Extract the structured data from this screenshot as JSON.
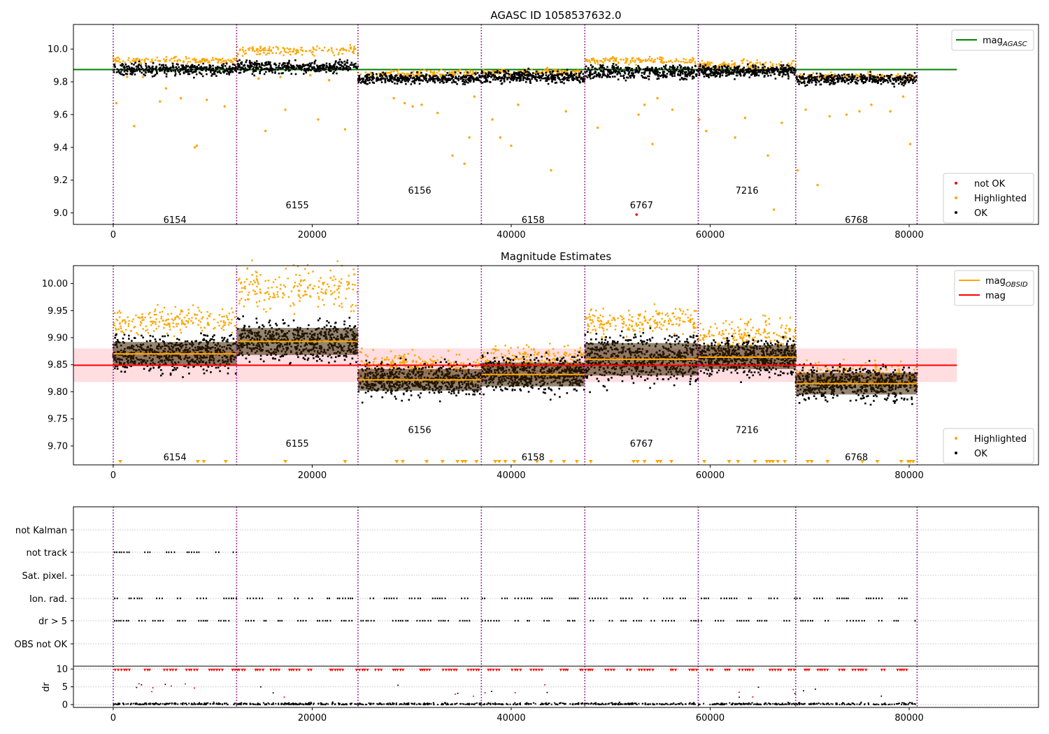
{
  "chart_data": [
    {
      "type": "scatter",
      "title": "AGASC ID 1058537632.0",
      "xlim": [
        -4000,
        93000
      ],
      "ylim": [
        8.93,
        10.15
      ],
      "xticks": [
        0,
        20000,
        40000,
        60000,
        80000
      ],
      "yticks": [
        9.0,
        9.2,
        9.4,
        9.6,
        9.8,
        10.0
      ],
      "obsid_boundaries": [
        0,
        12400,
        24600,
        37000,
        47400,
        58800,
        68600,
        80800
      ],
      "obsids": [
        {
          "label": "6154",
          "x": 6200,
          "y": 8.96,
          "ok_center": 9.875,
          "ok_halfwidth": 0.035,
          "hi_center": 9.93,
          "hi_halfwidth": 0.02
        },
        {
          "label": "6155",
          "x": 18500,
          "y": 9.05,
          "ok_center": 9.89,
          "ok_halfwidth": 0.035,
          "hi_center": 9.99,
          "hi_halfwidth": 0.03
        },
        {
          "label": "6156",
          "x": 30800,
          "y": 9.14,
          "ok_center": 9.82,
          "ok_halfwidth": 0.03,
          "hi_center": 9.85,
          "hi_halfwidth": 0.02
        },
        {
          "label": "6158",
          "x": 42200,
          "y": 8.96,
          "ok_center": 9.83,
          "ok_halfwidth": 0.035,
          "hi_center": 9.86,
          "hi_halfwidth": 0.02
        },
        {
          "label": "6767",
          "x": 53100,
          "y": 9.05,
          "ok_center": 9.86,
          "ok_halfwidth": 0.04,
          "hi_center": 9.93,
          "hi_halfwidth": 0.02
        },
        {
          "label": "7216",
          "x": 63700,
          "y": 9.14,
          "ok_center": 9.865,
          "ok_halfwidth": 0.035,
          "hi_center": 9.9,
          "hi_halfwidth": 0.03
        },
        {
          "label": "6768",
          "x": 74700,
          "y": 8.96,
          "ok_center": 9.815,
          "ok_halfwidth": 0.03,
          "hi_center": 9.83,
          "hi_halfwidth": 0.02
        }
      ],
      "series": [
        {
          "name": "mag$_{AGASC}$",
          "kind": "line",
          "color": "#008000",
          "y": 9.875,
          "x_range": [
            -4000,
            84800
          ]
        },
        {
          "name": "not OK",
          "kind": "scatter",
          "color": "#ff0000",
          "points": [
            [
              52600,
              8.99
            ]
          ]
        },
        {
          "name": "Highlighted",
          "kind": "scatter",
          "color": "#ffa500"
        },
        {
          "name": "OK",
          "kind": "scatter",
          "color": "#000000"
        }
      ],
      "outliers": [
        [
          300,
          9.67
        ],
        [
          1400,
          9.83
        ],
        [
          2100,
          9.53
        ],
        [
          3000,
          9.83
        ],
        [
          4700,
          9.68
        ],
        [
          5300,
          9.76
        ],
        [
          6800,
          9.7
        ],
        [
          8200,
          9.4
        ],
        [
          8400,
          9.41
        ],
        [
          9400,
          9.69
        ],
        [
          11200,
          9.65
        ],
        [
          14600,
          9.82
        ],
        [
          15300,
          9.5
        ],
        [
          16800,
          9.83
        ],
        [
          17300,
          9.63
        ],
        [
          19800,
          9.84
        ],
        [
          20600,
          9.57
        ],
        [
          21700,
          9.81
        ],
        [
          23300,
          9.51
        ],
        [
          28200,
          9.7
        ],
        [
          29300,
          9.67
        ],
        [
          30100,
          9.65
        ],
        [
          31000,
          9.66
        ],
        [
          32600,
          9.61
        ],
        [
          34100,
          9.35
        ],
        [
          35300,
          9.3
        ],
        [
          35800,
          9.46
        ],
        [
          36300,
          9.71
        ],
        [
          38100,
          9.57
        ],
        [
          38900,
          9.46
        ],
        [
          40000,
          9.41
        ],
        [
          40700,
          9.66
        ],
        [
          44000,
          9.26
        ],
        [
          45500,
          9.62
        ],
        [
          48700,
          9.52
        ],
        [
          52800,
          9.6
        ],
        [
          53400,
          9.66
        ],
        [
          54200,
          9.42
        ],
        [
          54700,
          9.7
        ],
        [
          56200,
          9.63
        ],
        [
          58900,
          9.57
        ],
        [
          59600,
          9.5
        ],
        [
          62500,
          9.46
        ],
        [
          63500,
          9.58
        ],
        [
          65800,
          9.35
        ],
        [
          66400,
          9.02
        ],
        [
          67200,
          9.55
        ],
        [
          68800,
          9.26
        ],
        [
          69600,
          9.63
        ],
        [
          70800,
          9.17
        ],
        [
          72000,
          9.59
        ],
        [
          73700,
          9.6
        ],
        [
          75000,
          9.62
        ],
        [
          76200,
          9.66
        ],
        [
          78100,
          9.62
        ],
        [
          79400,
          9.71
        ],
        [
          80100,
          9.42
        ]
      ],
      "legend_upper": "upper right",
      "legend_lower": "lower right"
    },
    {
      "type": "scatter",
      "title": "Magnitude Estimates",
      "xlim": [
        -4000,
        93000
      ],
      "ylim": [
        9.665,
        10.033
      ],
      "xticks": [
        0,
        20000,
        40000,
        60000,
        80000
      ],
      "yticks": [
        9.7,
        9.75,
        9.8,
        9.85,
        9.9,
        9.95,
        10.0
      ],
      "obsid_boundaries": [
        0,
        12400,
        24600,
        37000,
        47400,
        58800,
        68600,
        80800
      ],
      "obsid_labels": [
        {
          "label": "6154",
          "x": 6200,
          "y": 9.68
        },
        {
          "label": "6155",
          "x": 18500,
          "y": 9.705
        },
        {
          "label": "6156",
          "x": 30800,
          "y": 9.73
        },
        {
          "label": "6158",
          "x": 42200,
          "y": 9.68
        },
        {
          "label": "6767",
          "x": 53100,
          "y": 9.705
        },
        {
          "label": "7216",
          "x": 63700,
          "y": 9.73
        },
        {
          "label": "6768",
          "x": 74700,
          "y": 9.68
        }
      ],
      "mag_obsid": [
        {
          "x0": 0,
          "x1": 12400,
          "mag": 9.87,
          "err": 0.022
        },
        {
          "x0": 12400,
          "x1": 24600,
          "mag": 9.893,
          "err": 0.025
        },
        {
          "x0": 24600,
          "x1": 37000,
          "mag": 9.822,
          "err": 0.02
        },
        {
          "x0": 37000,
          "x1": 47400,
          "mag": 9.832,
          "err": 0.022
        },
        {
          "x0": 47400,
          "x1": 58800,
          "mag": 9.86,
          "err": 0.03
        },
        {
          "x0": 58800,
          "x1": 68600,
          "mag": 9.864,
          "err": 0.022
        },
        {
          "x0": 68600,
          "x1": 80800,
          "mag": 9.815,
          "err": 0.02
        }
      ],
      "mag": {
        "value": 9.849,
        "band": [
          9.818,
          9.88
        ],
        "x_range": [
          -4000,
          84800
        ]
      },
      "series": [
        {
          "name": "mag$_{OBSID}$",
          "kind": "line",
          "color": "#ffa500"
        },
        {
          "name": "mag",
          "kind": "line",
          "color": "#ff0000"
        },
        {
          "name": "Highlighted",
          "kind": "scatter",
          "color": "#ffa500"
        },
        {
          "name": "OK",
          "kind": "scatter",
          "color": "#000000"
        }
      ],
      "clipped_markers_x": [
        700,
        8500,
        9100,
        11300,
        17300,
        23300,
        28500,
        29100,
        31500,
        33100,
        34600,
        35100,
        35400,
        36500,
        38400,
        38800,
        39400,
        40300,
        42600,
        44000,
        45300,
        46600,
        48000,
        52300,
        52700,
        53400,
        54700,
        55000,
        56100,
        59400,
        61900,
        62800,
        64500,
        65700,
        66000,
        66300,
        66800,
        67500,
        69800,
        70200,
        71800,
        75300,
        76800,
        79200,
        79900,
        80100,
        80400
      ],
      "legend_upper": "upper right",
      "legend_lower": "lower right"
    },
    {
      "type": "scatter",
      "title": "",
      "xlim": [
        -4000,
        93000
      ],
      "flags": [
        "not Kalman",
        "not track",
        "Sat. pixel.",
        "Ion. rad.",
        "dr > 5",
        "OBS not OK"
      ],
      "flag_ranges": {
        "not track": [
          [
            0,
            12400
          ]
        ],
        "Ion. rad.": [
          [
            0,
            80800
          ]
        ],
        "dr > 5": [
          [
            0,
            80800
          ]
        ]
      },
      "xticks": [
        0,
        20000,
        40000,
        60000,
        80000
      ],
      "dr_ylabel": "dr",
      "dr_yticks": [
        0,
        5,
        10
      ],
      "dr_ylim": [
        -0.8,
        10.8
      ],
      "obsid_boundaries": [
        0,
        12400,
        24600,
        37000,
        47400,
        58800,
        68600,
        80800
      ]
    }
  ],
  "colors": {
    "ok": "#000000",
    "highlighted": "#ffa500",
    "not_ok": "#ff0000",
    "agasc_line": "#008000",
    "mag_line": "#ff0000",
    "mag_band": "#ffdde1",
    "obsid_boundary": "#800080",
    "grid": "#b0b0b0"
  }
}
